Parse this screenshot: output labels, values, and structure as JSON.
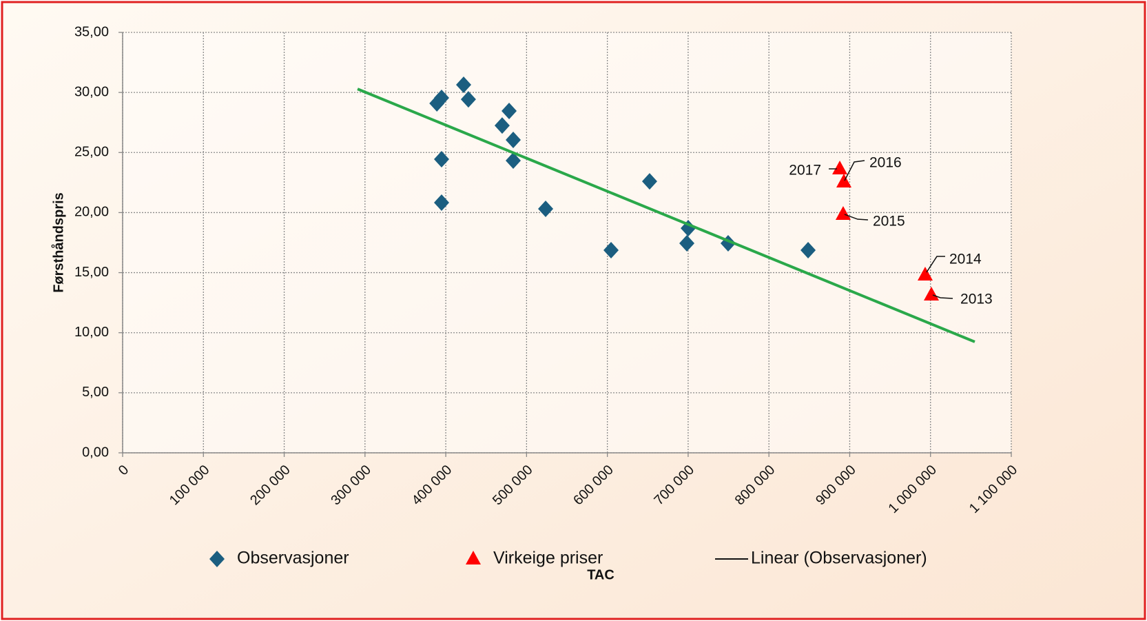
{
  "chart_data": {
    "type": "scatter",
    "xlabel": "TAC",
    "ylabel": "Førsthåndspris",
    "xlim": [
      0,
      1100000
    ],
    "ylim": [
      0,
      35
    ],
    "xticks": [
      0,
      {
        "value": 100000,
        "label": "100 000"
      },
      {
        "value": 200000,
        "label": "200 000"
      },
      {
        "value": 300000,
        "label": "300 000"
      },
      {
        "value": 400000,
        "label": "400 000"
      },
      {
        "value": 500000,
        "label": "500 000"
      },
      {
        "value": 600000,
        "label": "600 000"
      },
      {
        "value": 700000,
        "label": "700 000"
      },
      {
        "value": 800000,
        "label": "800 000"
      },
      {
        "value": 900000,
        "label": "900 000"
      },
      {
        "value": 1000000,
        "label": "1 000 000"
      },
      {
        "value": 1100000,
        "label": "1 100 000"
      }
    ],
    "yticks": [
      {
        "value": 0,
        "label": "0,00"
      },
      {
        "value": 5,
        "label": "5,00"
      },
      {
        "value": 10,
        "label": "10,00"
      },
      {
        "value": 15,
        "label": "15,00"
      },
      {
        "value": 20,
        "label": "20,00"
      },
      {
        "value": 25,
        "label": "25,00"
      },
      {
        "value": 30,
        "label": "30,00"
      },
      {
        "value": 35,
        "label": "35,00"
      }
    ],
    "grid": true,
    "legend": "bottom",
    "series": [
      {
        "name": "Observasjoner",
        "color": "#1b5e80",
        "marker": "diamond",
        "x": [
          389000,
          394800,
          422100,
          428000,
          478400,
          469800,
          483500,
          483500,
          394800,
          394800,
          523600,
          604600,
          652300,
          700100,
          698400,
          749500,
          848500
        ],
        "values": [
          29.09,
          29.55,
          30.64,
          29.43,
          28.46,
          27.25,
          26.05,
          24.33,
          24.44,
          20.83,
          20.31,
          16.87,
          22.6,
          18.7,
          17.44,
          17.44,
          16.87
        ]
      },
      {
        "name": "Virkeige priser",
        "color": "#ff0000",
        "marker": "triangle",
        "x": [
          887700,
          892800,
          891900,
          993400,
          1001100
        ],
        "values": [
          23.64,
          22.55,
          19.85,
          14.8,
          13.14
        ],
        "labels": [
          "2017",
          "2016",
          "2015",
          "2014",
          "2013"
        ]
      },
      {
        "name": "Linear (Observasjoner)",
        "color": "#2aa84a",
        "marker": "line",
        "x": [
          290800,
          1054800
        ],
        "values": [
          30.29,
          9.24
        ]
      }
    ]
  }
}
